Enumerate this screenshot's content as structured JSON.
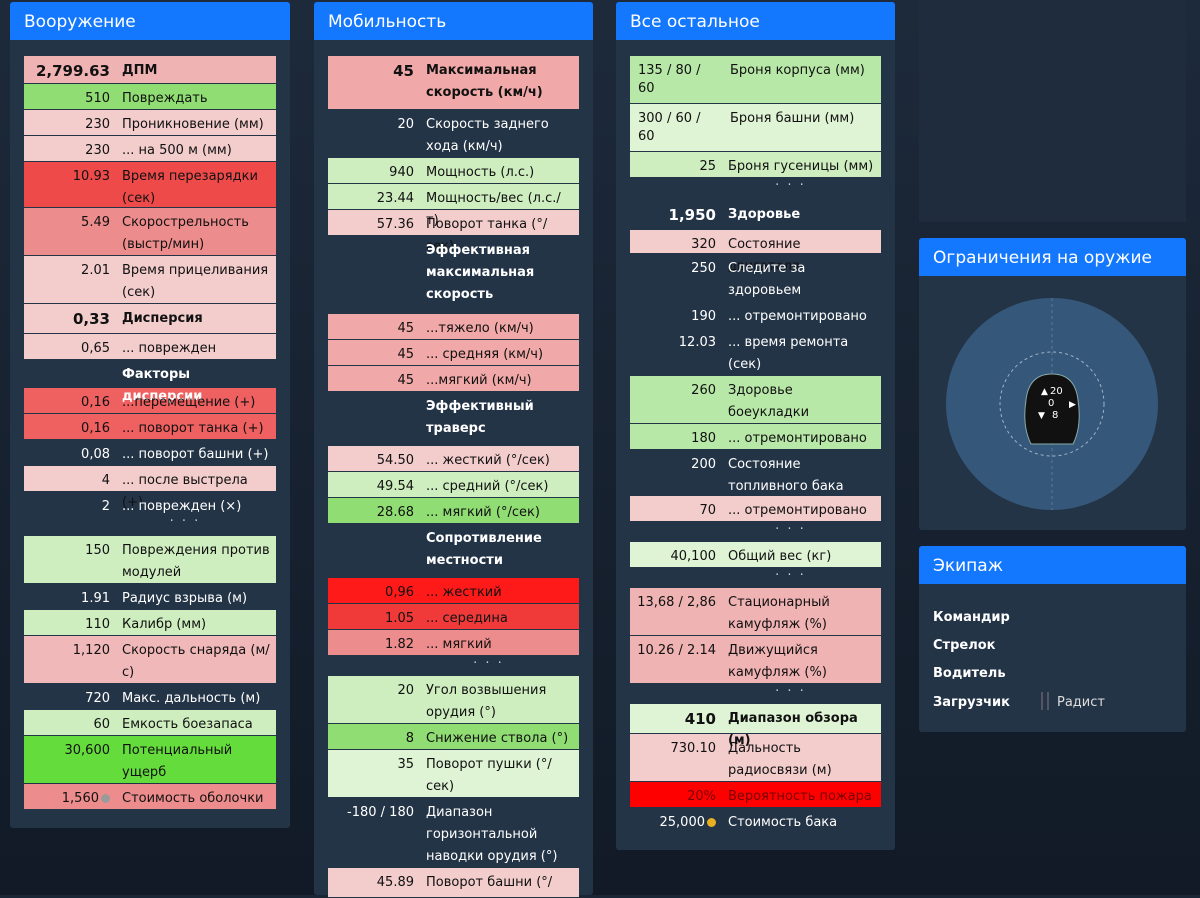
{
  "colors": {
    "header": "#1478ff",
    "panel": "#243447",
    "page": "#1a2636"
  },
  "weapons": {
    "title": "Вооружение",
    "rows": [
      {
        "v": "2,799.63",
        "l": "ДПМ",
        "c": "#f0b3b3",
        "h": 28,
        "bold": true,
        "big": true
      },
      {
        "v": "510",
        "l": "Повреждать",
        "c": "#90dd73",
        "h": 26
      },
      {
        "v": "230",
        "l": "Проникновение (мм)",
        "c": "#f3cccc",
        "h": 26
      },
      {
        "v": "230",
        "l": "... на 500 м (мм)",
        "c": "#f3cccc",
        "h": 26
      },
      {
        "v": "10.93",
        "l": "Время перезарядки (сек)",
        "c": "#ef4a4a",
        "h": 46
      },
      {
        "v": "5.49",
        "l": "Скорострельность (выстр/мин)",
        "c": "#ed8c8c",
        "h": 48
      },
      {
        "v": "2.01",
        "l": "Время прицеливания (сек)",
        "c": "#f3cccc",
        "h": 48
      },
      {
        "v": "0,33",
        "l": "Дисперсия",
        "c": "#f3cccc",
        "h": 30,
        "bold": true,
        "big": true
      },
      {
        "v": "0,65",
        "l": "... поврежден",
        "c": "#f3cccc",
        "h": 26
      },
      {
        "v": "",
        "l": "Факторы дисперсии",
        "c": "",
        "h": 28,
        "bold": true
      },
      {
        "v": "0,16",
        "l": "...перемещение (+)",
        "c": "#ef6060",
        "h": 26
      },
      {
        "v": "0,16",
        "l": "... поворот танка (+)",
        "c": "#ef6060",
        "h": 26
      },
      {
        "v": "0,08",
        "l": "... поворот башни (+)",
        "c": "",
        "h": 26
      },
      {
        "v": "4",
        "l": "... после выстрела (+)",
        "c": "#f3cccc",
        "h": 26
      },
      {
        "v": "2",
        "l": "... поврежден (×)",
        "c": "",
        "h": 22
      },
      {
        "dots": "· · ·",
        "h": 22
      },
      {
        "v": "150",
        "l": "Повреждения против модулей",
        "c": "#cfeec0",
        "h": 48
      },
      {
        "v": "1.91",
        "l": "Радиус взрыва (м)",
        "c": "",
        "h": 26
      },
      {
        "v": "110",
        "l": "Калибр (мм)",
        "c": "#cfeec0",
        "h": 26
      },
      {
        "v": "1,120",
        "l": "Скорость снаряда (м/с)",
        "c": "#f0b8b8",
        "h": 48
      },
      {
        "v": "720",
        "l": "Макс. дальность (м)",
        "c": "",
        "h": 26
      },
      {
        "v": "60",
        "l": "Емкость боезапаса",
        "c": "#cfeec0",
        "h": 26
      },
      {
        "v": "30,600",
        "l": "Потенциальный ущерб",
        "c": "#64dc3c",
        "h": 48
      },
      {
        "v": "1,560",
        "l": "Стоимость оболочки",
        "c": "#ed8c8c",
        "h": 26,
        "coin": "#9a9a9a"
      }
    ]
  },
  "mobility": {
    "title": "Мобильность",
    "rows": [
      {
        "v": "45",
        "l": "Максимальная скорость (км/ч)",
        "c": "#f0a8a8",
        "h": 54,
        "bold": true,
        "big": true
      },
      {
        "v": "20",
        "l": "Скорость заднего хода (км/ч)",
        "c": "",
        "h": 48
      },
      {
        "v": "940",
        "l": "Мощность (л.с.)",
        "c": "#cfeec0",
        "h": 26
      },
      {
        "v": "23.44",
        "l": "Мощность/вес (л.с./т)",
        "c": "#cfeec0",
        "h": 26
      },
      {
        "v": "57.36",
        "l": "Поворот танка (°/сек)",
        "c": "#f3cccc",
        "h": 26
      },
      {
        "v": "",
        "l": "Эффективная максимальная скорость",
        "c": "",
        "h": 78,
        "bold": true
      },
      {
        "v": "45",
        "l": "...тяжело (км/ч)",
        "c": "#f0a8a8",
        "h": 26
      },
      {
        "v": "45",
        "l": "... средняя (км/ч)",
        "c": "#f0a8a8",
        "h": 26
      },
      {
        "v": "45",
        "l": "...мягкий (км/ч)",
        "c": "#f0a8a8",
        "h": 26
      },
      {
        "v": "",
        "l": "Эффективный траверс",
        "c": "",
        "h": 54,
        "bold": true
      },
      {
        "v": "54.50",
        "l": "... жесткий (°/сек)",
        "c": "#f3cccc",
        "h": 26
      },
      {
        "v": "49.54",
        "l": "... средний (°/сек)",
        "c": "#cfeec0",
        "h": 26
      },
      {
        "v": "28.68",
        "l": "... мягкий (°/сек)",
        "c": "#90dd73",
        "h": 26
      },
      {
        "v": "",
        "l": "Сопротивление местности",
        "c": "",
        "h": 54,
        "bold": true
      },
      {
        "v": "0,96",
        "l": "... жесткий",
        "c": "#ff1a1a",
        "h": 26
      },
      {
        "v": "1.05",
        "l": "... середина",
        "c": "#f03a3a",
        "h": 26
      },
      {
        "v": "1.82",
        "l": "... мягкий",
        "c": "#ed8c8c",
        "h": 26
      },
      {
        "dots": "· · ·",
        "h": 20
      },
      {
        "v": "20",
        "l": "Угол возвышения орудия (°)",
        "c": "#cfeec0",
        "h": 48
      },
      {
        "v": "8",
        "l": "Снижение ствола (°)",
        "c": "#90dd73",
        "h": 26
      },
      {
        "v": "35",
        "l": "Поворот пушки (°/сек)",
        "c": "#dff3d5",
        "h": 48
      },
      {
        "v": "-180 / 180",
        "l": "Диапазон горизонтальной наводки орудия (°)",
        "c": "",
        "h": 70
      },
      {
        "v": "45.89",
        "l": "Поворот башни (°/",
        "c": "#f3cccc",
        "h": 30
      }
    ]
  },
  "other": {
    "title": "Все остальное",
    "rows": [
      {
        "v": "135 / 80 / 60",
        "l": "Броня корпуса (мм)",
        "c": "#b8e8a8",
        "h": 48,
        "left": true
      },
      {
        "v": "300 / 60 / 60",
        "l": "Броня башни (мм)",
        "c": "#dff3d5",
        "h": 48,
        "left": true
      },
      {
        "v": "25",
        "l": "Броня гусеницы (мм)",
        "c": "#cfeec0",
        "h": 26
      },
      {
        "dots": "· · ·",
        "h": 22
      },
      {
        "v": "1,950",
        "l": "Здоровье",
        "c": "",
        "h": 30,
        "bold": true,
        "big": true
      },
      {
        "v": "320",
        "l": "Состояние двигателя",
        "c": "#f3cccc",
        "h": 24
      },
      {
        "v": "250",
        "l": "Следите за здоровьем",
        "c": "",
        "h": 48
      },
      {
        "v": "190",
        "l": "... отремонтировано",
        "c": "",
        "h": 26
      },
      {
        "v": "12.03",
        "l": "... время ремонта (сек)",
        "c": "",
        "h": 48
      },
      {
        "v": "260",
        "l": "Здоровье боеукладки",
        "c": "#b8e8a8",
        "h": 48
      },
      {
        "v": "180",
        "l": "... отремонтировано",
        "c": "#b8e8a8",
        "h": 26
      },
      {
        "v": "200",
        "l": "Состояние топливного бака",
        "c": "",
        "h": 46
      },
      {
        "v": "70",
        "l": "... отремонтировано",
        "c": "#f3cccc",
        "h": 26
      },
      {
        "dots": "· · ·",
        "h": 20
      },
      {
        "v": "40,100",
        "l": "Общий вес (кг)",
        "c": "#dff3d5",
        "h": 26
      },
      {
        "dots": "· · ·",
        "h": 20
      },
      {
        "v": "13,68 / 2,86",
        "l": "Стационарный камуфляж (%)",
        "c": "#f0b3b3",
        "h": 48
      },
      {
        "v": "10.26 / 2.14",
        "l": "Движущийся камуфляж (%)",
        "c": "#f0b3b3",
        "h": 48
      },
      {
        "dots": "· · ·",
        "h": 20
      },
      {
        "v": "410",
        "l": "Диапазон обзора (м)",
        "c": "#dff3d5",
        "h": 30,
        "bold": true,
        "big": true
      },
      {
        "v": "730.10",
        "l": "Дальность радиосвязи (м)",
        "c": "#f3cccc",
        "h": 48
      },
      {
        "v": "20%",
        "l": "Вероятность пожара",
        "c": "#ff0000",
        "h": 26
      },
      {
        "v": "25,000",
        "l": "Стоимость бака",
        "c": "",
        "h": 26,
        "coin": "#e8b020"
      }
    ]
  },
  "limits": {
    "title": "Ограничения на оружие",
    "elev": "20",
    "center": "0",
    "depr": "8"
  },
  "crew": {
    "title": "Экипаж",
    "commander": "Командир",
    "gunner": "Стрелок",
    "driver": "Водитель",
    "loader": "Загрузчик",
    "radio": "Радист"
  }
}
